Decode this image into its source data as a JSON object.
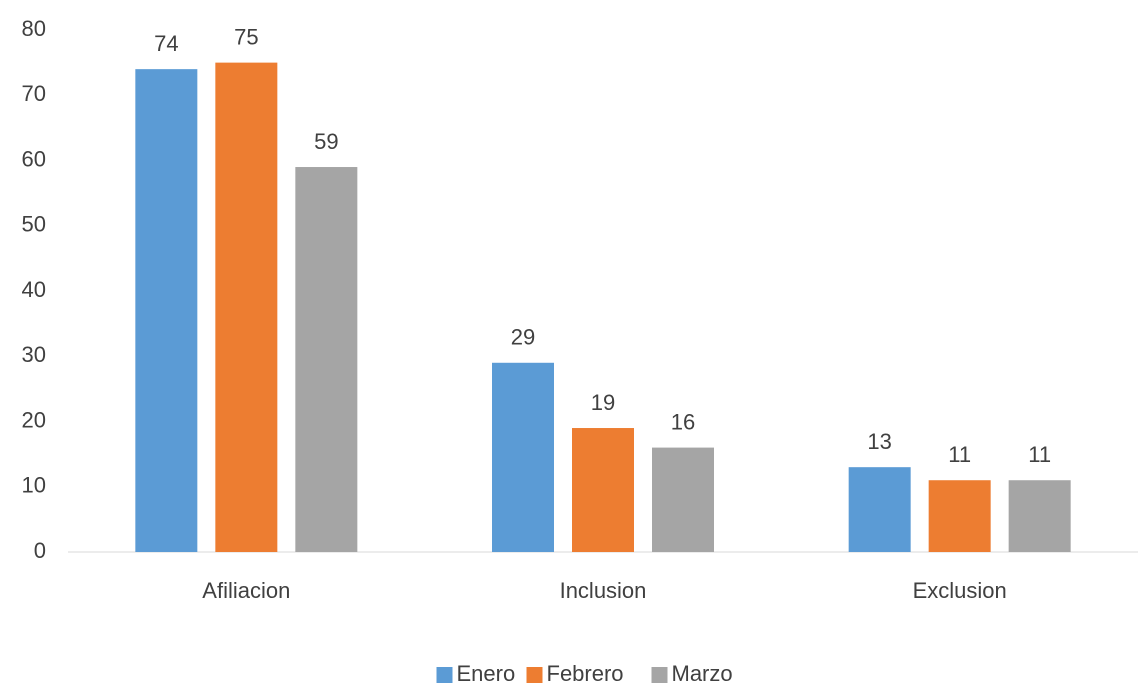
{
  "chart_data": {
    "type": "bar",
    "categories": [
      "Afiliacion",
      "Inclusion",
      "Exclusion"
    ],
    "series": [
      {
        "name": "Enero",
        "color": "#5b9bd5",
        "values": [
          74,
          29,
          13
        ]
      },
      {
        "name": "Febrero",
        "color": "#ed7d31",
        "values": [
          75,
          19,
          11
        ]
      },
      {
        "name": "Marzo",
        "color": "#a5a5a5",
        "values": [
          59,
          16,
          11
        ]
      }
    ],
    "ylim": [
      0,
      80
    ],
    "yticks": [
      0,
      10,
      20,
      30,
      40,
      50,
      60,
      70,
      80
    ],
    "grid": false,
    "legend": "bottom"
  }
}
